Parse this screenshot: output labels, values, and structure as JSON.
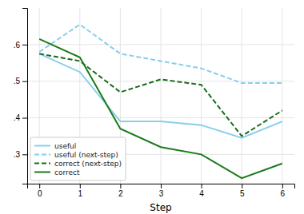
{
  "chart_data": {
    "type": "line",
    "xlabel": "Step",
    "x": [
      0,
      1,
      2,
      3,
      4,
      5,
      6
    ],
    "xlim": [
      -0.3,
      6.3
    ],
    "xticks": [
      0,
      1,
      2,
      3,
      4,
      5,
      6
    ],
    "ylim": [
      0.22,
      0.7
    ],
    "yticks": [
      {
        "value": 0.3,
        "label": ".3"
      },
      {
        "value": 0.4,
        "label": ".4"
      },
      {
        "value": 0.5,
        "label": ".5"
      },
      {
        "value": 0.6,
        "label": ".6"
      }
    ],
    "grid": true,
    "legend": "lower left",
    "series": [
      {
        "name": "useful",
        "color": "#87ceeb",
        "line_style": "solid",
        "values": [
          0.575,
          0.525,
          0.39,
          0.39,
          0.38,
          0.345,
          0.39
        ]
      },
      {
        "name": "useful (next-step)",
        "color": "#87ceeb",
        "line_style": "dashed",
        "values": [
          0.58,
          0.655,
          0.575,
          0.555,
          0.535,
          0.495,
          0.495
        ]
      },
      {
        "name": "correct (next-step)",
        "color": "#1a6b1a",
        "line_style": "dashed",
        "values": [
          0.575,
          0.555,
          0.47,
          0.505,
          0.49,
          0.35,
          0.42
        ]
      },
      {
        "name": "correct",
        "color": "#1a7a1a",
        "line_style": "solid",
        "values": [
          0.615,
          0.565,
          0.37,
          0.32,
          0.3,
          0.235,
          0.275
        ]
      }
    ]
  }
}
